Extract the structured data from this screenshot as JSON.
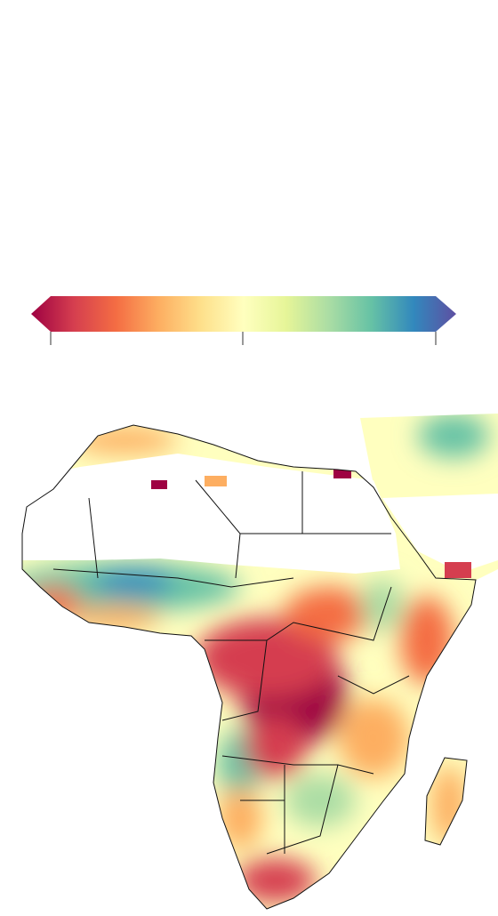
{
  "colorbar": {
    "colors": [
      "#9e0142",
      "#d53e4f",
      "#f46d43",
      "#fdae61",
      "#fee08b",
      "#ffffbf",
      "#e6f598",
      "#abdda4",
      "#66c2a5",
      "#3288bd",
      "#5e4fa2"
    ]
  }
}
